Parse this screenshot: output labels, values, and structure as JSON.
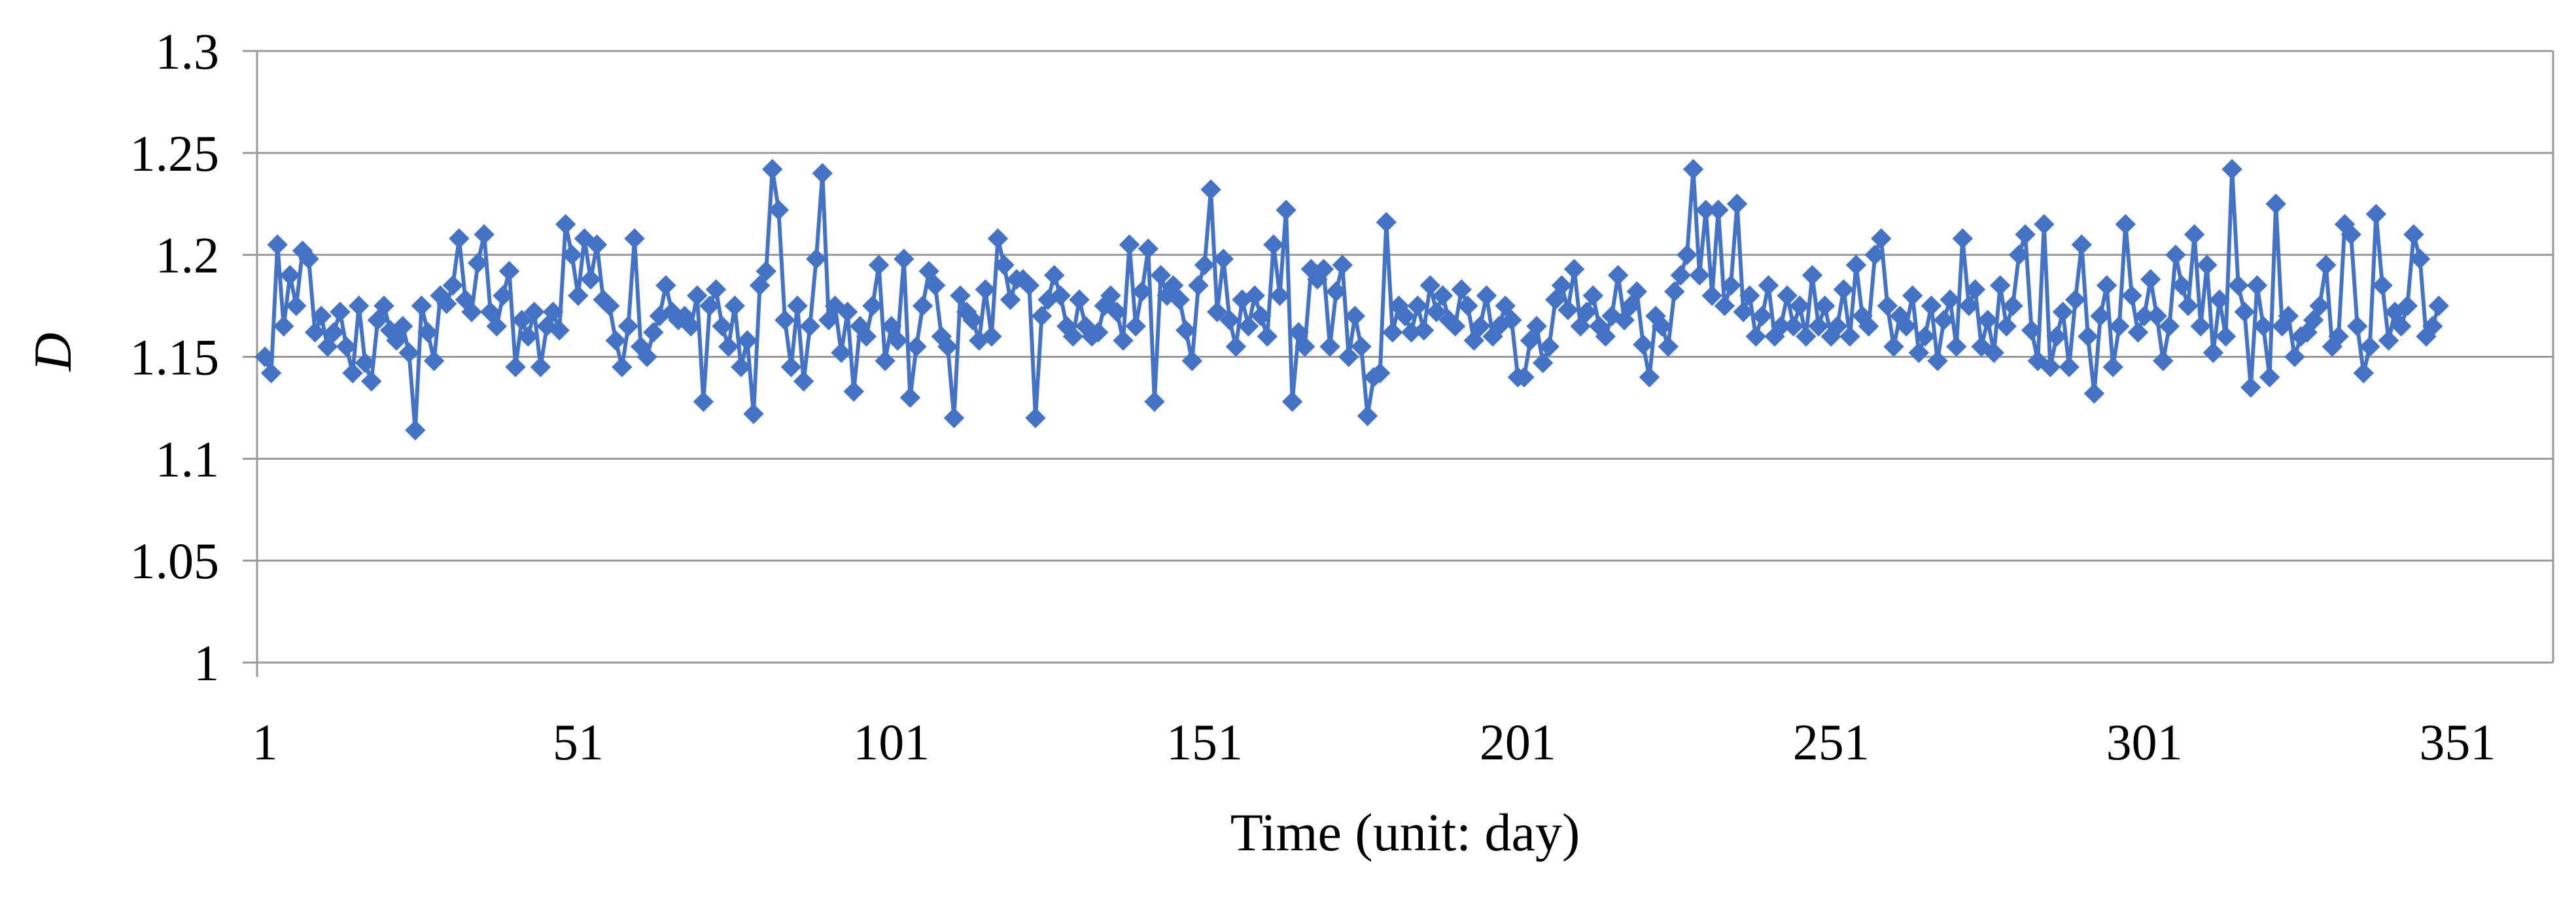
{
  "chart_data": {
    "type": "line",
    "title": "",
    "xlabel": "Time (unit: day)",
    "ylabel": "D",
    "xlim": [
      1,
      365
    ],
    "ylim": [
      1,
      1.3
    ],
    "grid": "horizontal",
    "legend": "none",
    "marker": "diamond",
    "color": "#4472C4",
    "x_ticks": [
      "1",
      "51",
      "101",
      "151",
      "201",
      "251",
      "301",
      "351"
    ],
    "y_ticks": [
      "1",
      "1.05",
      "1.1",
      "1.15",
      "1.2",
      "1.25",
      "1.3"
    ],
    "series": [
      {
        "values": [
          1.15,
          1.142,
          1.205,
          1.165,
          1.19,
          1.175,
          1.202,
          1.198,
          1.162,
          1.17,
          1.155,
          1.162,
          1.172,
          1.155,
          1.142,
          1.175,
          1.147,
          1.138,
          1.168,
          1.175,
          1.163,
          1.158,
          1.165,
          1.152,
          1.114,
          1.175,
          1.162,
          1.148,
          1.18,
          1.176,
          1.185,
          1.208,
          1.178,
          1.172,
          1.196,
          1.21,
          1.172,
          1.165,
          1.18,
          1.192,
          1.145,
          1.168,
          1.16,
          1.172,
          1.145,
          1.165,
          1.172,
          1.163,
          1.215,
          1.2,
          1.18,
          1.208,
          1.188,
          1.205,
          1.178,
          1.175,
          1.158,
          1.145,
          1.165,
          1.208,
          1.155,
          1.15,
          1.162,
          1.17,
          1.185,
          1.172,
          1.168,
          1.17,
          1.165,
          1.18,
          1.128,
          1.175,
          1.183,
          1.165,
          1.155,
          1.175,
          1.145,
          1.158,
          1.122,
          1.185,
          1.192,
          1.242,
          1.222,
          1.168,
          1.145,
          1.175,
          1.138,
          1.165,
          1.198,
          1.24,
          1.168,
          1.175,
          1.152,
          1.172,
          1.133,
          1.165,
          1.16,
          1.175,
          1.195,
          1.148,
          1.165,
          1.158,
          1.198,
          1.13,
          1.155,
          1.175,
          1.192,
          1.185,
          1.16,
          1.155,
          1.12,
          1.18,
          1.172,
          1.168,
          1.158,
          1.183,
          1.16,
          1.208,
          1.195,
          1.178,
          1.188,
          1.188,
          1.185,
          1.12,
          1.17,
          1.178,
          1.19,
          1.18,
          1.165,
          1.16,
          1.178,
          1.165,
          1.16,
          1.162,
          1.175,
          1.18,
          1.172,
          1.158,
          1.205,
          1.165,
          1.182,
          1.203,
          1.128,
          1.19,
          1.18,
          1.185,
          1.178,
          1.163,
          1.148,
          1.185,
          1.195,
          1.232,
          1.172,
          1.198,
          1.168,
          1.155,
          1.178,
          1.165,
          1.18,
          1.17,
          1.16,
          1.205,
          1.18,
          1.222,
          1.128,
          1.162,
          1.155,
          1.193,
          1.188,
          1.193,
          1.155,
          1.182,
          1.195,
          1.15,
          1.17,
          1.155,
          1.121,
          1.14,
          1.142,
          1.216,
          1.162,
          1.175,
          1.17,
          1.162,
          1.175,
          1.163,
          1.185,
          1.172,
          1.18,
          1.168,
          1.165,
          1.183,
          1.175,
          1.158,
          1.165,
          1.18,
          1.16,
          1.165,
          1.175,
          1.168,
          1.14,
          1.14,
          1.158,
          1.165,
          1.147,
          1.155,
          1.178,
          1.185,
          1.173,
          1.193,
          1.165,
          1.172,
          1.18,
          1.165,
          1.16,
          1.17,
          1.19,
          1.168,
          1.175,
          1.182,
          1.156,
          1.14,
          1.17,
          1.165,
          1.155,
          1.182,
          1.19,
          1.2,
          1.242,
          1.19,
          1.222,
          1.18,
          1.222,
          1.175,
          1.185,
          1.225,
          1.172,
          1.18,
          1.16,
          1.17,
          1.185,
          1.16,
          1.165,
          1.18,
          1.165,
          1.175,
          1.16,
          1.19,
          1.165,
          1.175,
          1.16,
          1.165,
          1.183,
          1.16,
          1.195,
          1.17,
          1.165,
          1.2,
          1.208,
          1.175,
          1.155,
          1.17,
          1.165,
          1.18,
          1.152,
          1.16,
          1.175,
          1.148,
          1.168,
          1.178,
          1.155,
          1.208,
          1.175,
          1.183,
          1.155,
          1.168,
          1.152,
          1.185,
          1.165,
          1.175,
          1.2,
          1.21,
          1.163,
          1.148,
          1.215,
          1.145,
          1.16,
          1.172,
          1.145,
          1.178,
          1.205,
          1.16,
          1.132,
          1.17,
          1.185,
          1.145,
          1.165,
          1.215,
          1.18,
          1.162,
          1.17,
          1.188,
          1.17,
          1.148,
          1.165,
          1.2,
          1.185,
          1.175,
          1.21,
          1.165,
          1.195,
          1.152,
          1.178,
          1.16,
          1.242,
          1.185,
          1.172,
          1.135,
          1.185,
          1.165,
          1.14,
          1.225,
          1.165,
          1.17,
          1.15,
          1.16,
          1.162,
          1.168,
          1.175,
          1.195,
          1.155,
          1.16,
          1.215,
          1.21,
          1.165,
          1.142,
          1.155,
          1.22,
          1.185,
          1.158,
          1.172,
          1.165,
          1.175,
          1.21,
          1.198,
          1.16,
          1.165,
          1.175
        ]
      }
    ]
  }
}
